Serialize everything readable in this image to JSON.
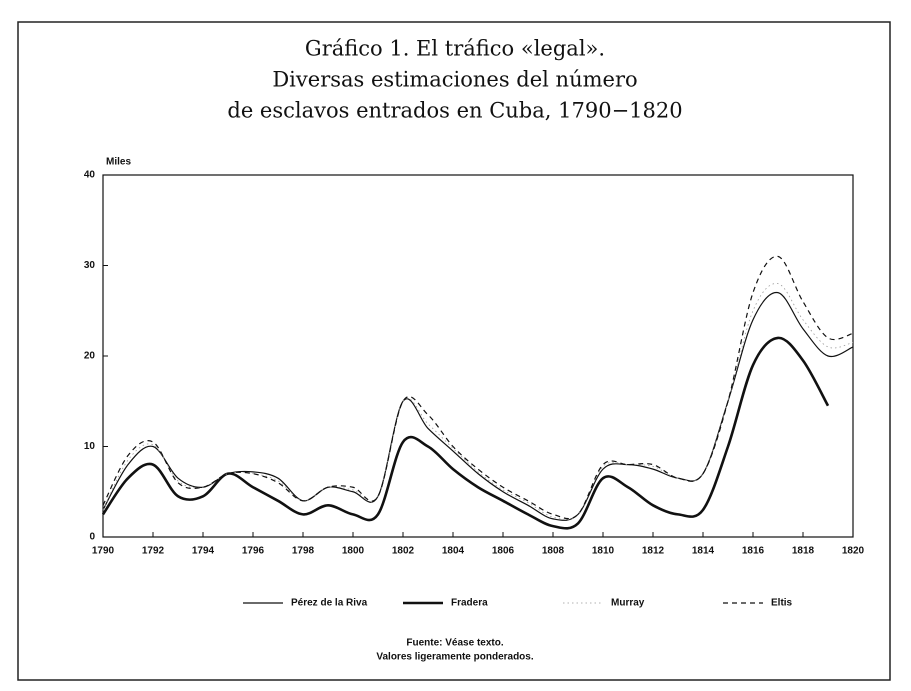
{
  "chart_data": {
    "type": "line",
    "title": [
      "Gráfico 1. El tráfico «legal».",
      "Diversas estimaciones del número",
      "de esclavos entrados en Cuba, 1790−1820"
    ],
    "ylabel": "Miles",
    "x": [
      1790,
      1791,
      1792,
      1793,
      1794,
      1795,
      1796,
      1797,
      1798,
      1799,
      1800,
      1801,
      1802,
      1803,
      1804,
      1805,
      1806,
      1807,
      1808,
      1809,
      1810,
      1811,
      1812,
      1813,
      1814,
      1815,
      1816,
      1817,
      1818,
      1819,
      1820
    ],
    "series": [
      {
        "name": "Pérez de la Riva",
        "color": "#111111",
        "linewidth": 1.2,
        "linestyle": "solid",
        "values": [
          3,
          8,
          10,
          6.5,
          5.5,
          7,
          7.2,
          6.5,
          4,
          5.5,
          5,
          4.5,
          15,
          12,
          9.5,
          7,
          5,
          3.5,
          2,
          2.5,
          7.5,
          8,
          7.5,
          6.5,
          7,
          15,
          24,
          27,
          23,
          20,
          21
        ]
      },
      {
        "name": "Fradera",
        "color": "#111111",
        "linewidth": 2.6,
        "linestyle": "solid",
        "values": [
          2.5,
          6.5,
          8,
          4.5,
          4.5,
          7,
          5.5,
          4,
          2.5,
          3.5,
          2.5,
          2.5,
          10.5,
          10,
          7.5,
          5.5,
          4,
          2.5,
          1.2,
          1.5,
          6.5,
          5.5,
          3.5,
          2.5,
          3,
          10,
          19,
          22,
          19.5,
          14.5,
          null
        ]
      },
      {
        "name": "Murray",
        "color": "#999999",
        "linewidth": 0.8,
        "linestyle": "dotted",
        "values": [
          3,
          8.5,
          10.2,
          6.2,
          5.5,
          7,
          7,
          6.2,
          4,
          5.5,
          5.2,
          4.5,
          15,
          12.5,
          9.8,
          7.2,
          5.2,
          3.8,
          2.2,
          2.5,
          7.8,
          8,
          7.8,
          6.5,
          7,
          15,
          25,
          28,
          24,
          21,
          21.5
        ]
      },
      {
        "name": "Eltis",
        "color": "#111111",
        "linewidth": 1.2,
        "linestyle": "dashed",
        "values": [
          3.5,
          9,
          10.5,
          6,
          5.5,
          7,
          7,
          6,
          4,
          5.5,
          5.5,
          4.5,
          15,
          13.5,
          10,
          7.5,
          5.5,
          4,
          2.5,
          2.5,
          8,
          8,
          8,
          6.5,
          7,
          15,
          27,
          31,
          26,
          22,
          22.5
        ]
      }
    ],
    "xlim": [
      1790,
      1820
    ],
    "xticks": [
      1790,
      1792,
      1794,
      1796,
      1798,
      1800,
      1802,
      1804,
      1806,
      1808,
      1810,
      1812,
      1814,
      1816,
      1818,
      1820
    ],
    "ylim": [
      0,
      40
    ],
    "yticks": [
      0,
      10,
      20,
      30,
      40
    ],
    "source": [
      "Fuente: Véase texto.",
      "Valores ligeramente ponderados."
    ]
  }
}
